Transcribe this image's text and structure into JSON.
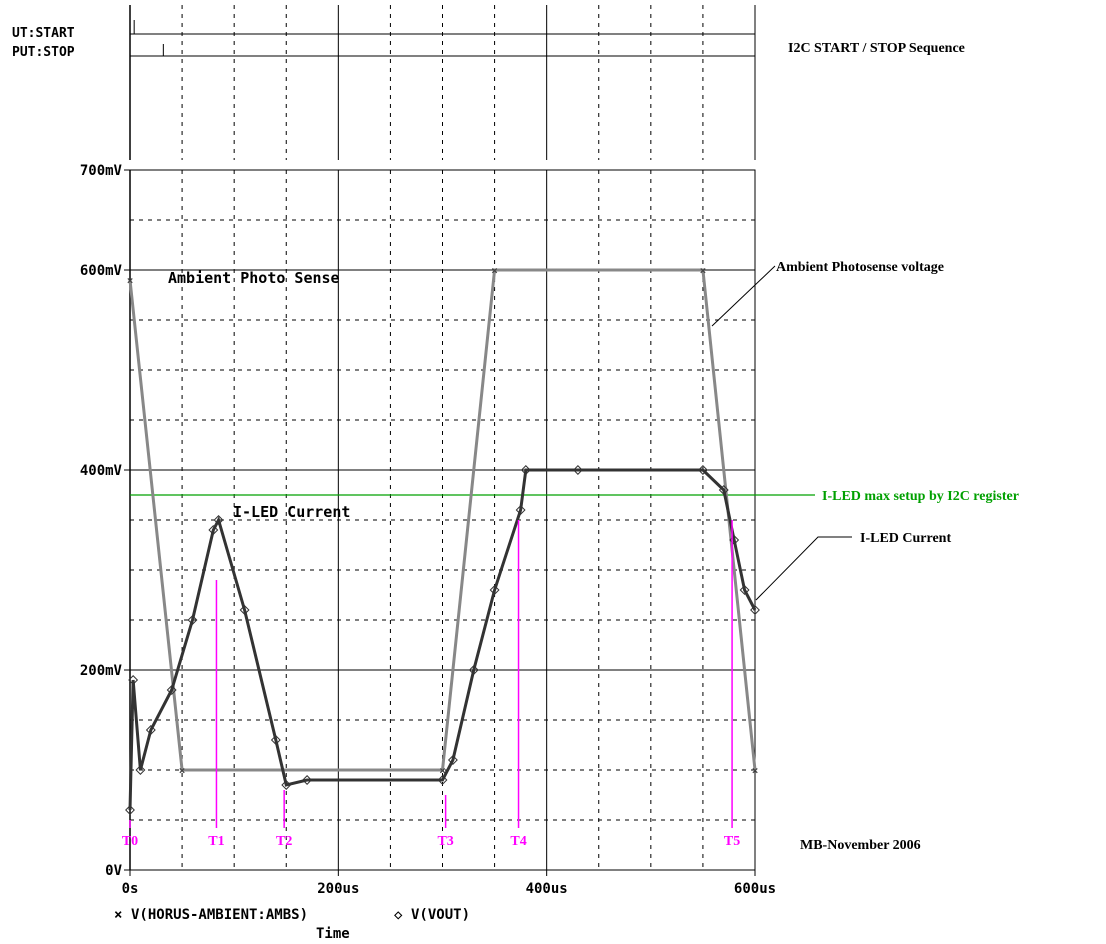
{
  "chart_data": {
    "type": "line",
    "title": "I2C START / STOP Sequence",
    "xlabel": "Time",
    "xlim": [
      0,
      600
    ],
    "ylim": [
      0,
      700
    ],
    "x_ticks": [
      "0s",
      "200us",
      "400us",
      "600us"
    ],
    "y_ticks": [
      "0V",
      "200mV",
      "400mV",
      "600mV",
      "700mV"
    ],
    "legend": [
      {
        "marker": "×",
        "label": "V(HORUS-AMBIENT:AMBS)"
      },
      {
        "marker": "◇",
        "label": "V(VOUT)"
      }
    ],
    "digital_traces": {
      "start_label": "UT:START",
      "stop_label": "PUT:STOP",
      "start_pulse_us": 4,
      "stop_pulse_us": 32
    },
    "series": [
      {
        "name": "Ambient Photo Sense",
        "x": [
          0,
          50,
          300,
          350,
          550,
          600
        ],
        "y": [
          590,
          100,
          100,
          600,
          600,
          100
        ]
      },
      {
        "name": "I-LED Current",
        "x": [
          0,
          3,
          10,
          20,
          40,
          60,
          80,
          85,
          110,
          140,
          150,
          170,
          300,
          310,
          330,
          350,
          375,
          380,
          430,
          550,
          570,
          580,
          590,
          600
        ],
        "y": [
          60,
          190,
          100,
          140,
          180,
          250,
          340,
          350,
          260,
          130,
          85,
          90,
          90,
          110,
          200,
          280,
          360,
          400,
          400,
          400,
          380,
          330,
          280,
          260
        ]
      }
    ],
    "reference_line": {
      "label": "I-LED max setup by I2C register",
      "y": 375,
      "color": "#00a000"
    },
    "markers": [
      {
        "label": "T0",
        "x": 0,
        "y": 50
      },
      {
        "label": "T1",
        "x": 83,
        "y": 290
      },
      {
        "label": "T2",
        "x": 148,
        "y": 80
      },
      {
        "label": "T3",
        "x": 303,
        "y": 75
      },
      {
        "label": "T4",
        "x": 373,
        "y": 350
      },
      {
        "label": "T5",
        "x": 578,
        "y": 350
      }
    ],
    "annotations": {
      "ambient_inside": "Ambient Photo Sense",
      "iled_inside": "I-LED Current",
      "ambient_callout": "Ambient Photosense voltage",
      "iled_callout": "I-LED Current",
      "credit": "MB-November 2006"
    },
    "colors": {
      "markers": "#ff00ff",
      "reference": "#00a000",
      "trace": "#888888",
      "iled": "#333333"
    }
  }
}
